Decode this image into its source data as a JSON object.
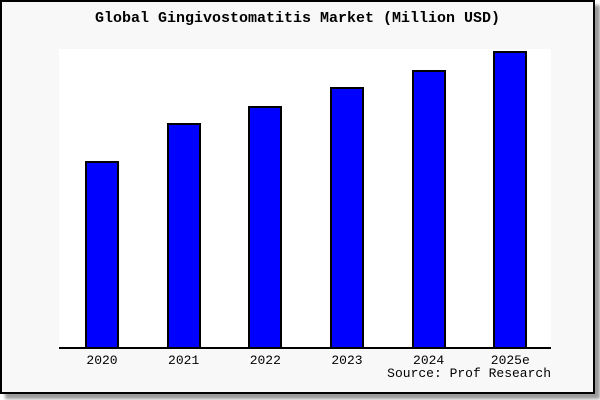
{
  "title": "Global Gingivostomatitis Market (Million USD)",
  "source_note": "Source: Prof Research",
  "colors": {
    "bar_fill": "#0000ff",
    "bar_border": "#000000",
    "frame_background": "#f8f8f8",
    "plot_background": "#ffffff",
    "axis": "#000000",
    "text": "#000000"
  },
  "chart_data": {
    "type": "bar",
    "title": "Global Gingivostomatitis Market (Million USD)",
    "categories": [
      "2020",
      "2021",
      "2022",
      "2023",
      "2024",
      "2025e"
    ],
    "values": [
      187,
      225,
      243,
      262,
      279,
      298
    ],
    "xlabel": "",
    "ylabel": "",
    "ylim": [
      0,
      300
    ],
    "grid": false,
    "legend": false,
    "value_axis_labels_visible": false
  }
}
